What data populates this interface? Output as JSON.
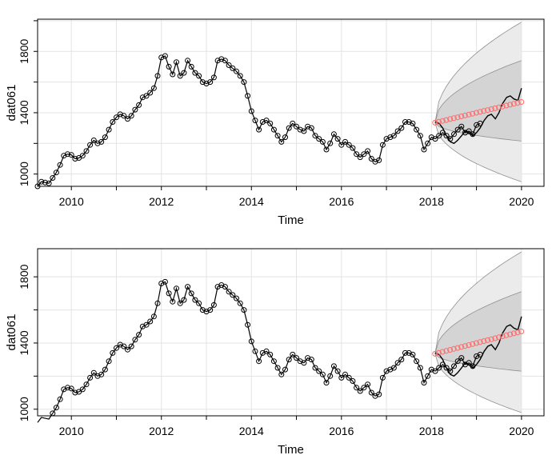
{
  "chart_data": [
    {
      "type": "line",
      "xlabel": "Time",
      "ylabel": "dat061",
      "xlim": [
        2009.25,
        2020.5
      ],
      "ylim": [
        920,
        2010
      ],
      "x_ticks": [
        2010,
        2012,
        2014,
        2016,
        2018,
        2020
      ],
      "y_ticks": [
        1000,
        1400,
        1800
      ],
      "grid": true,
      "series": [
        {
          "start": 2009.25,
          "frequency": 12,
          "values": [
            920,
            950,
            945,
            940,
            975,
            1010,
            1060,
            1120,
            1130,
            1125,
            1100,
            1105,
            1120,
            1150,
            1190,
            1220,
            1200,
            1210,
            1240,
            1290,
            1340,
            1370,
            1390,
            1380,
            1360,
            1380,
            1420,
            1450,
            1500,
            1510,
            1530,
            1560,
            1640,
            1760,
            1770,
            1700,
            1650,
            1730,
            1640,
            1660,
            1740,
            1700,
            1660,
            1640,
            1600,
            1590,
            1600,
            1630,
            1740,
            1750,
            1740,
            1710,
            1690,
            1670,
            1640,
            1600,
            1510,
            1410,
            1350,
            1290,
            1340,
            1350,
            1330,
            1290,
            1250,
            1210,
            1240,
            1300,
            1330,
            1310,
            1290,
            1280,
            1310,
            1300,
            1250,
            1230,
            1210,
            1160,
            1200,
            1260,
            1230,
            1190,
            1210,
            1190,
            1170,
            1130,
            1110,
            1130,
            1150,
            1100,
            1080,
            1090,
            1190,
            1230,
            1240,
            1250,
            1280,
            1300,
            1340,
            1340,
            1330,
            1290,
            1250,
            1160,
            1200,
            1240,
            1230,
            1250,
            1270,
            1250,
            1230,
            1260,
            1290,
            1310,
            1270,
            1280,
            1260,
            1320,
            1330
          ]
        },
        {
          "x": [
            2018.08,
            2018.17,
            2018.25,
            2018.33,
            2018.42,
            2018.5,
            2018.58,
            2018.67,
            2018.75,
            2018.83,
            2018.92,
            2019.0,
            2019.08,
            2019.17,
            2019.25,
            2019.33,
            2019.42,
            2019.5,
            2019.58,
            2019.67,
            2019.75,
            2019.83,
            2019.92,
            2020.0
          ],
          "values": [
            1340,
            1330,
            1300,
            1250,
            1210,
            1200,
            1220,
            1250,
            1280,
            1270,
            1250,
            1270,
            1300,
            1350,
            1380,
            1390,
            1360,
            1400,
            1460,
            1500,
            1510,
            1490,
            1480,
            1560
          ]
        }
      ],
      "forecast": {
        "start": 2018.08,
        "frequency": 12,
        "points": 24,
        "mean": [
          1335,
          1470
        ],
        "band80": {
          "lower": [
            1335,
            1215
          ],
          "upper": [
            1335,
            1740
          ]
        },
        "band95": {
          "lower": [
            1335,
            950
          ],
          "upper": [
            1335,
            1990
          ]
        }
      },
      "colors": {
        "observed": "#000000",
        "forecast_marker": "#ff6a6a",
        "band80": "#d4d4d4",
        "band95": "#ebebeb",
        "band_line": "#8f8f8f",
        "grid": "#e3e3e3"
      }
    },
    {
      "type": "line",
      "xlabel": "Time",
      "ylabel": "dat061",
      "xlim": [
        2009.25,
        2020.5
      ],
      "ylim": [
        960,
        1970
      ],
      "x_ticks": [
        2010,
        2012,
        2014,
        2016,
        2018,
        2020
      ],
      "y_ticks": [
        1000,
        1400,
        1800
      ],
      "grid": true,
      "series": [
        {
          "start": 2009.25,
          "frequency": 12,
          "values": [
            920,
            950,
            945,
            940,
            975,
            1010,
            1060,
            1120,
            1130,
            1125,
            1100,
            1105,
            1120,
            1150,
            1190,
            1220,
            1200,
            1210,
            1240,
            1290,
            1340,
            1370,
            1390,
            1380,
            1360,
            1380,
            1420,
            1450,
            1500,
            1510,
            1530,
            1560,
            1640,
            1760,
            1770,
            1700,
            1650,
            1730,
            1640,
            1660,
            1740,
            1700,
            1660,
            1640,
            1600,
            1590,
            1600,
            1630,
            1740,
            1750,
            1740,
            1710,
            1690,
            1670,
            1640,
            1600,
            1510,
            1410,
            1350,
            1290,
            1340,
            1350,
            1330,
            1290,
            1250,
            1210,
            1240,
            1300,
            1330,
            1310,
            1290,
            1280,
            1310,
            1300,
            1250,
            1230,
            1210,
            1160,
            1200,
            1260,
            1230,
            1190,
            1210,
            1190,
            1170,
            1130,
            1110,
            1130,
            1150,
            1100,
            1080,
            1090,
            1190,
            1230,
            1240,
            1250,
            1280,
            1300,
            1340,
            1340,
            1330,
            1290,
            1250,
            1160,
            1200,
            1240,
            1230,
            1250,
            1270,
            1250,
            1230,
            1260,
            1290,
            1310,
            1270,
            1280,
            1260,
            1320,
            1330
          ]
        },
        {
          "x": [
            2018.08,
            2018.17,
            2018.25,
            2018.33,
            2018.42,
            2018.5,
            2018.58,
            2018.67,
            2018.75,
            2018.83,
            2018.92,
            2019.0,
            2019.08,
            2019.17,
            2019.25,
            2019.33,
            2019.42,
            2019.5,
            2019.58,
            2019.67,
            2019.75,
            2019.83,
            2019.92,
            2020.0
          ],
          "values": [
            1340,
            1330,
            1300,
            1250,
            1210,
            1200,
            1220,
            1250,
            1280,
            1270,
            1250,
            1270,
            1300,
            1350,
            1380,
            1390,
            1360,
            1400,
            1460,
            1500,
            1510,
            1490,
            1480,
            1560
          ]
        }
      ],
      "forecast": {
        "start": 2018.08,
        "frequency": 12,
        "points": 24,
        "mean": [
          1335,
          1470
        ],
        "band80": {
          "lower": [
            1335,
            1230
          ],
          "upper": [
            1335,
            1710
          ]
        },
        "band95": {
          "lower": [
            1335,
            980
          ],
          "upper": [
            1335,
            1950
          ]
        }
      },
      "colors": {
        "observed": "#000000",
        "forecast_marker": "#ff6a6a",
        "band80": "#d4d4d4",
        "band95": "#ebebeb",
        "band_line": "#8f8f8f",
        "grid": "#e3e3e3"
      }
    }
  ]
}
